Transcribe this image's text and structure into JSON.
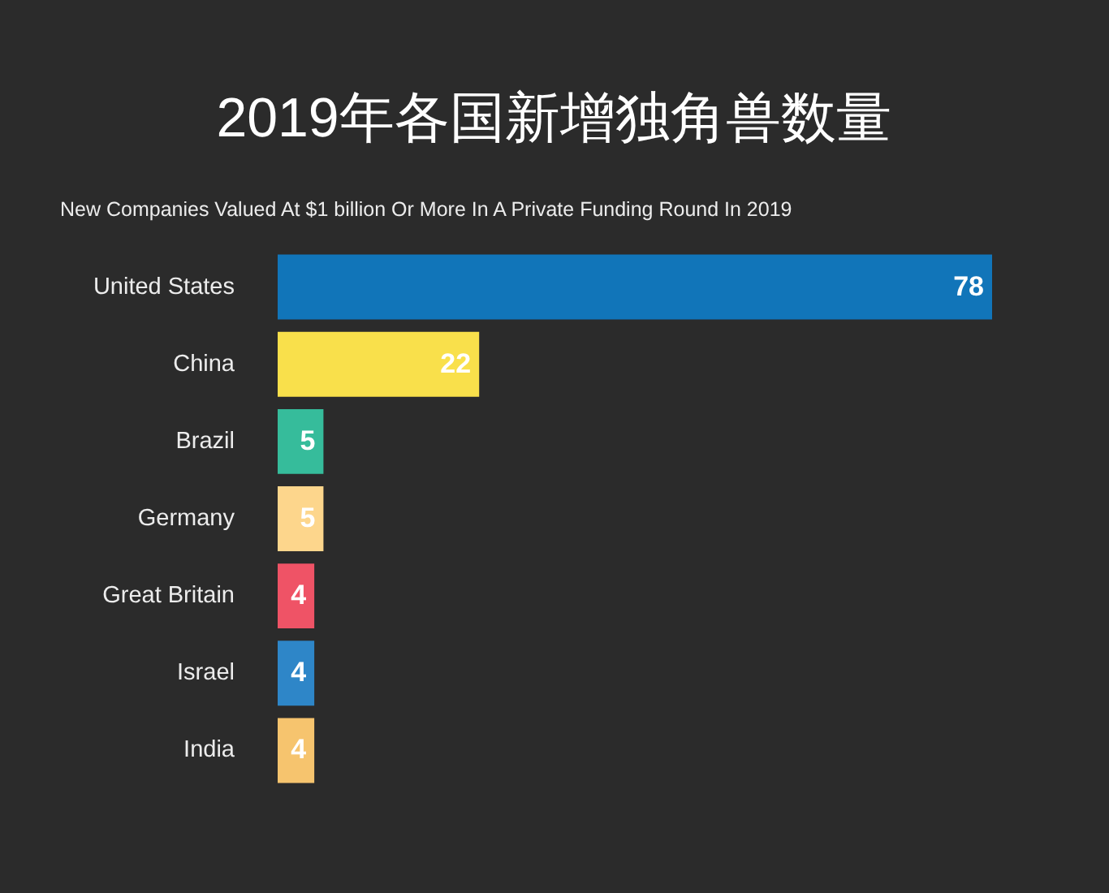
{
  "chart_data": {
    "type": "bar",
    "orientation": "horizontal",
    "title": "2019年各国新增独角兽数量",
    "subtitle": "New Companies Valued At $1 billion Or More In A Private Funding Round In 2019",
    "categories": [
      "United States",
      "China",
      "Brazil",
      "Germany",
      "Great Britain",
      "Israel",
      "India"
    ],
    "values": [
      78,
      22,
      5,
      5,
      4,
      4,
      4
    ],
    "colors": [
      "#1175b9",
      "#f9e04b",
      "#36bc9b",
      "#fdd68c",
      "#ef5366",
      "#2e86c8",
      "#f6c46e"
    ],
    "data_labels": true,
    "tick_labels": "y"
  }
}
